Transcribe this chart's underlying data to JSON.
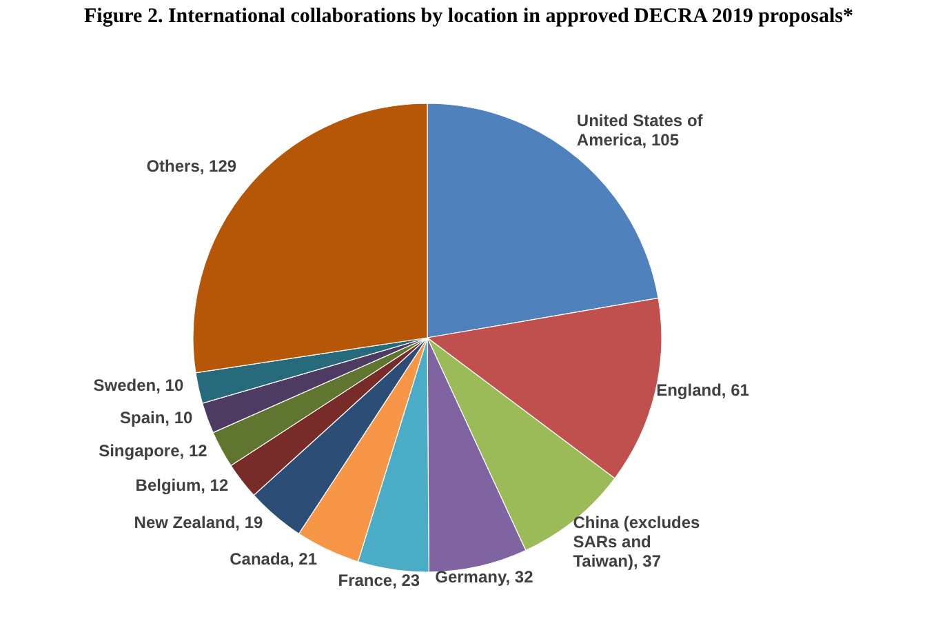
{
  "chart_data": {
    "type": "pie",
    "title": "Figure 2. International collaborations by location in approved DECRA 2019 proposals*",
    "categories": [
      "United States of America",
      "England",
      "China (excludes SARs and Taiwan)",
      "Germany",
      "France",
      "Canada",
      "New Zealand",
      "Belgium",
      "Singapore",
      "Spain",
      "Sweden",
      "Others"
    ],
    "values": [
      105,
      61,
      37,
      32,
      23,
      21,
      19,
      12,
      12,
      10,
      10,
      129
    ],
    "value_labels": [
      ", 105",
      ", 61",
      ", 37",
      ", 32",
      ", 23",
      ", 21",
      ", 19",
      ", 12",
      ", 12",
      ", 10",
      ", 10",
      ", 129"
    ],
    "colors": [
      "#4f81bd",
      "#c0504d",
      "#9bbb59",
      "#8064a2",
      "#4bacc6",
      "#f79646",
      "#2c4d75",
      "#772c2a",
      "#5f7530",
      "#4d3b62",
      "#276a7c",
      "#b65708"
    ]
  }
}
